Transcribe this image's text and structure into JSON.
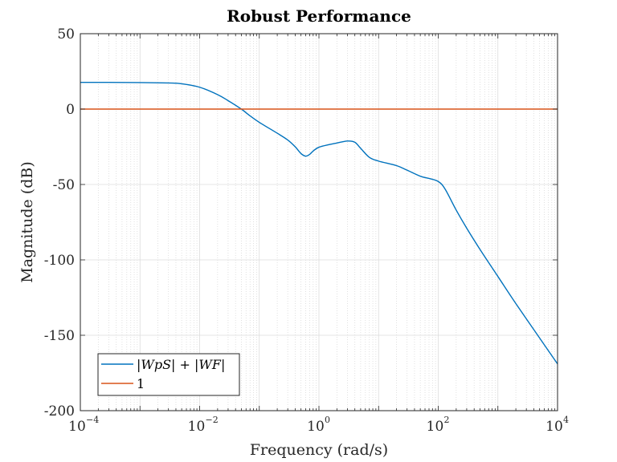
{
  "chart_data": {
    "type": "line",
    "title": "Robust Performance",
    "xlabel": "Frequency (rad/s)",
    "ylabel": "Magnitude (dB)",
    "xscale": "log",
    "xlim": [
      0.0001,
      10000
    ],
    "ylim": [
      -200,
      50
    ],
    "xticks": [
      {
        "base": "10",
        "exp": "−4"
      },
      {
        "base": "10",
        "exp": "−2"
      },
      {
        "base": "10",
        "exp": "0"
      },
      {
        "base": "10",
        "exp": "2"
      },
      {
        "base": "10",
        "exp": "4"
      }
    ],
    "yticks": [
      "50",
      "0",
      "-50",
      "-100",
      "-150",
      "-200"
    ],
    "grid": true,
    "legend_position": "bottom-left",
    "series": [
      {
        "name": "|WpS| + |WF|",
        "color": "#0072BD",
        "x": [
          0.0001,
          0.0003,
          0.001,
          0.003,
          0.005,
          0.01,
          0.02,
          0.03,
          0.05,
          0.07,
          0.1,
          0.2,
          0.3,
          0.4,
          0.5,
          0.6,
          0.7,
          0.8,
          1,
          1.5,
          2,
          3,
          4,
          5,
          7,
          10,
          20,
          30,
          50,
          70,
          100,
          130,
          200,
          300,
          500,
          1000,
          2000,
          5000,
          10000
        ],
        "y": [
          17.7,
          17.7,
          17.6,
          17.3,
          16.8,
          14.5,
          9.6,
          5.6,
          0,
          -4.5,
          -8.8,
          -16,
          -20.5,
          -25,
          -29.5,
          -31.2,
          -30,
          -27.8,
          -25.3,
          -23.5,
          -22.5,
          -21.2,
          -22,
          -26,
          -32,
          -34.5,
          -37.5,
          -40.5,
          -44.5,
          -46,
          -48,
          -53,
          -67,
          -79,
          -93,
          -111,
          -129,
          -151.8,
          -169
        ]
      },
      {
        "name": "1",
        "color": "#D95319",
        "x": [
          0.0001,
          10000
        ],
        "y": [
          0,
          0
        ]
      }
    ]
  },
  "legend": {
    "entries": [
      {
        "label": "|WpS| + |WF|",
        "color": "#0072BD"
      },
      {
        "label": "1",
        "color": "#D95319"
      }
    ]
  }
}
